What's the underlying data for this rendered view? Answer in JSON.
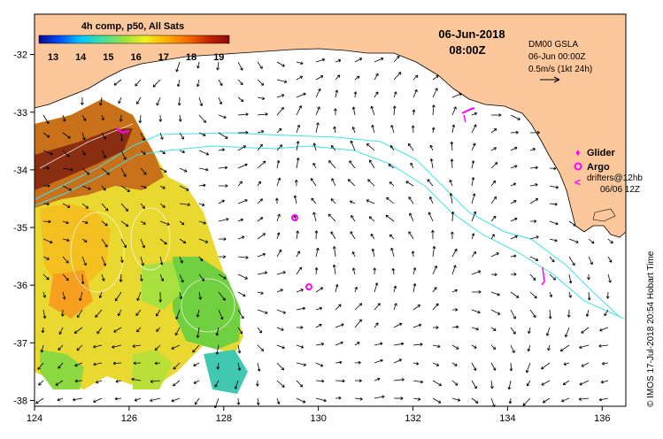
{
  "colorbar": {
    "title": "4h comp, p50, All Sats",
    "ticks": [
      "13",
      "14",
      "15",
      "16",
      "17",
      "18",
      "19"
    ],
    "colors": [
      "#0a0a8c",
      "#0050ff",
      "#00c8ff",
      "#40e0a0",
      "#a0e040",
      "#f0f020",
      "#ffb000",
      "#f06000",
      "#c02000",
      "#8c0a0a"
    ]
  },
  "header": {
    "date": "06-Jun-2018",
    "time": "08:00Z"
  },
  "ssh_label": {
    "line1": "DM00 GSLA",
    "line2": "06-Jun 00:00Z",
    "scale": "0.5m/s (1kt 24h)"
  },
  "legend": {
    "glider": "Glider",
    "argo": "Argo",
    "drifters": "drifters@12hb",
    "drifters_date": "06/06 12Z"
  },
  "credit": "© IMOS 17-Jul-2018 20:54 Hobart Time",
  "axes": {
    "lon_ticks": [
      "124",
      "126",
      "128",
      "130",
      "132",
      "134",
      "136"
    ],
    "lat_ticks": [
      "-32",
      "-33",
      "-34",
      "-35",
      "-36",
      "-37",
      "-38"
    ],
    "lon_range": [
      124,
      136.5
    ],
    "lat_range": [
      -38.1,
      -31.3
    ]
  },
  "map_colors": {
    "land": "#fcc89b",
    "shelf_contour": "#40e0e8",
    "marker": "#ff00ff"
  },
  "argo_floats": [
    {
      "lon": 129.5,
      "lat": -34.83
    },
    {
      "lon": 129.8,
      "lat": -36.03
    }
  ]
}
